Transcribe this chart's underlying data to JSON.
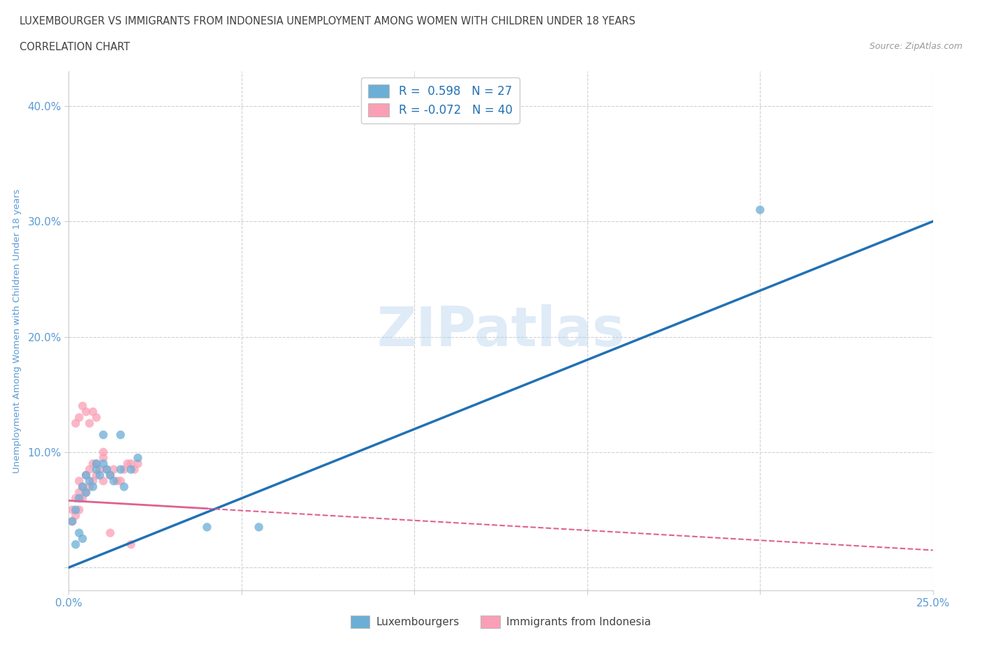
{
  "title_line1": "LUXEMBOURGER VS IMMIGRANTS FROM INDONESIA UNEMPLOYMENT AMONG WOMEN WITH CHILDREN UNDER 18 YEARS",
  "title_line2": "CORRELATION CHART",
  "source_text": "Source: ZipAtlas.com",
  "ylabel": "Unemployment Among Women with Children Under 18 years",
  "watermark": "ZIPatlas",
  "xlim": [
    0.0,
    0.25
  ],
  "ylim": [
    -0.02,
    0.43
  ],
  "blue_R": 0.598,
  "blue_N": 27,
  "pink_R": -0.072,
  "pink_N": 40,
  "blue_color": "#6baed6",
  "pink_color": "#fa9fb5",
  "blue_line_color": "#2171b5",
  "pink_line_color": "#e06090",
  "legend_blue_label": "Luxembourgers",
  "legend_pink_label": "Immigrants from Indonesia",
  "blue_scatter_x": [
    0.001,
    0.002,
    0.003,
    0.004,
    0.005,
    0.005,
    0.006,
    0.007,
    0.008,
    0.008,
    0.009,
    0.01,
    0.011,
    0.012,
    0.013,
    0.015,
    0.016,
    0.018,
    0.02,
    0.002,
    0.003,
    0.004,
    0.01,
    0.015,
    0.04,
    0.055,
    0.2
  ],
  "blue_scatter_y": [
    0.04,
    0.05,
    0.06,
    0.07,
    0.065,
    0.08,
    0.075,
    0.07,
    0.09,
    0.085,
    0.08,
    0.09,
    0.085,
    0.08,
    0.075,
    0.085,
    0.07,
    0.085,
    0.095,
    0.02,
    0.03,
    0.025,
    0.115,
    0.115,
    0.035,
    0.035,
    0.31
  ],
  "pink_scatter_x": [
    0.001,
    0.001,
    0.002,
    0.002,
    0.003,
    0.003,
    0.003,
    0.004,
    0.004,
    0.005,
    0.005,
    0.006,
    0.006,
    0.007,
    0.007,
    0.008,
    0.008,
    0.009,
    0.01,
    0.01,
    0.011,
    0.012,
    0.013,
    0.014,
    0.015,
    0.016,
    0.017,
    0.018,
    0.019,
    0.02,
    0.002,
    0.003,
    0.004,
    0.005,
    0.006,
    0.007,
    0.008,
    0.01,
    0.012,
    0.018
  ],
  "pink_scatter_y": [
    0.04,
    0.05,
    0.045,
    0.06,
    0.05,
    0.065,
    0.075,
    0.06,
    0.07,
    0.065,
    0.08,
    0.07,
    0.085,
    0.075,
    0.09,
    0.08,
    0.09,
    0.085,
    0.075,
    0.095,
    0.085,
    0.08,
    0.085,
    0.075,
    0.075,
    0.085,
    0.09,
    0.09,
    0.085,
    0.09,
    0.125,
    0.13,
    0.14,
    0.135,
    0.125,
    0.135,
    0.13,
    0.1,
    0.03,
    0.02
  ],
  "background_color": "#ffffff",
  "grid_color": "#d0d0d0",
  "title_color": "#404040",
  "axis_label_color": "#5b9bd5",
  "tick_label_color": "#5b9bd5"
}
